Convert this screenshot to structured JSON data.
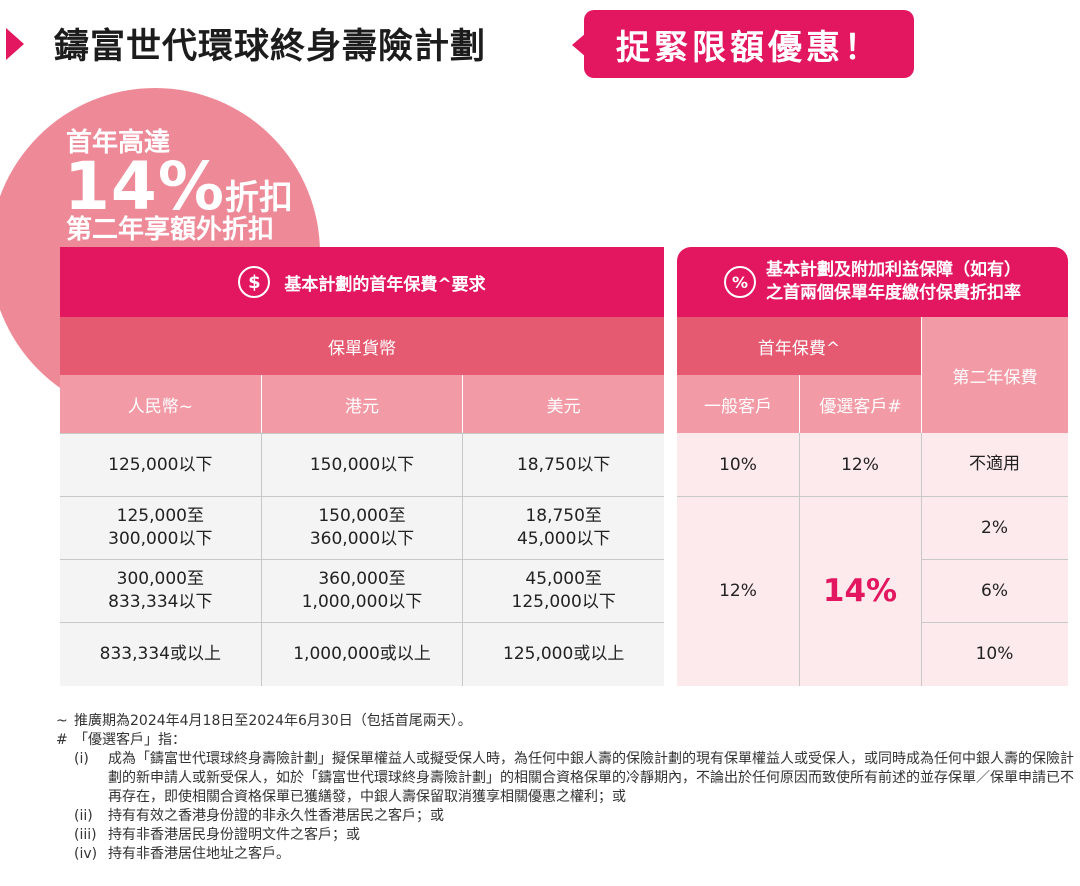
{
  "header": {
    "title": "鑄富世代環球終身壽險計劃",
    "promo": "捉緊限額優惠！",
    "accent_color": "#e2175f"
  },
  "badge": {
    "line1": "首年高達",
    "percent": "14%",
    "discount_word": "折扣",
    "line3": "第二年享額外折扣"
  },
  "left_table": {
    "icon": "$",
    "title": "基本計劃的首年保費^要求",
    "currency_header": "保單貨幣",
    "columns": [
      "人民幣~",
      "港元",
      "美元"
    ],
    "rows": [
      [
        "125,000以下",
        "150,000以下",
        "18,750以下"
      ],
      [
        "125,000至\n300,000以下",
        "150,000至\n360,000以下",
        "18,750至\n45,000以下"
      ],
      [
        "300,000至\n833,334以下",
        "360,000至\n1,000,000以下",
        "45,000至\n125,000以下"
      ],
      [
        "833,334或以上",
        "1,000,000或以上",
        "125,000或以上"
      ]
    ]
  },
  "right_table": {
    "icon": "%",
    "title_line1": "基本計劃及附加利益保障（如有）",
    "title_line2": "之首兩個保單年度繳付保費折扣率",
    "first_year_header": "首年保費^",
    "second_year_header": "第二年保費",
    "general_client": "一般客戶",
    "preferred_client": "優選客戶#",
    "row1": {
      "general": "10%",
      "preferred": "12%",
      "second": "不適用"
    },
    "merged": {
      "general": "12%",
      "preferred": "14%"
    },
    "second_year_values": [
      "2%",
      "6%",
      "10%"
    ]
  },
  "notes": {
    "tilde_mark": "~",
    "tilde_text": "推廣期為2024年4月18日至2024年6月30日（包括首尾兩天）。",
    "hash_mark": "#",
    "hash_text": "「優選客戶」指：",
    "items": [
      {
        "num": "(i)",
        "text": "成為「鑄富世代環球終身壽險計劃」擬保單權益人或擬受保人時，為任何中銀人壽的保險計劃的現有保單權益人或受保人，或同時成為任何中銀人壽的保險計劃的新申請人或新受保人，如於「鑄富世代環球終身壽險計劃」的相關合資格保單的冷靜期內，不論出於任何原因而致使所有前述的並存保單／保單申請已不再存在，即使相關合資格保單已獲繕發，中銀人壽保留取消獲享相關優惠之權利；或"
      },
      {
        "num": "(ii)",
        "text": "持有有效之香港身份證的非永久性香港居民之客戶；或"
      },
      {
        "num": "(iii)",
        "text": "持有非香港居民身份證明文件之客戶；或"
      },
      {
        "num": "(iv)",
        "text": "持有非香港居住地址之客戶。"
      }
    ]
  }
}
